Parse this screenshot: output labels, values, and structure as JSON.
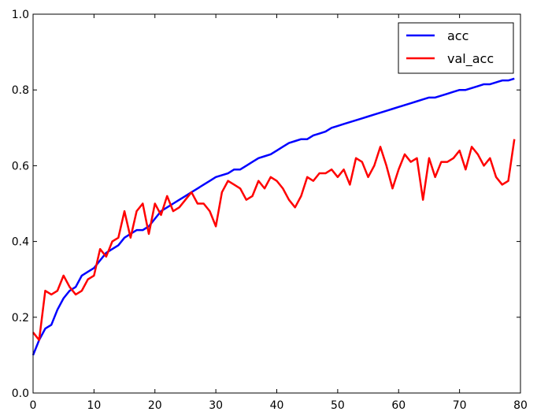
{
  "chart_data": {
    "type": "line",
    "title": "",
    "xlabel": "",
    "ylabel": "",
    "xlim": [
      0,
      80
    ],
    "ylim": [
      0.0,
      1.0
    ],
    "xticks": [
      0,
      10,
      20,
      30,
      40,
      50,
      60,
      70,
      80
    ],
    "yticks": [
      0.0,
      0.2,
      0.4,
      0.6,
      0.8,
      1.0
    ],
    "xtick_labels": [
      "0",
      "10",
      "20",
      "30",
      "40",
      "50",
      "60",
      "70",
      "80"
    ],
    "ytick_labels": [
      "0.0",
      "0.2",
      "0.4",
      "0.6",
      "0.8",
      "1.0"
    ],
    "grid": false,
    "legend_position": "top-right",
    "series": [
      {
        "name": "acc",
        "color": "#0000ff",
        "x": [
          0,
          1,
          2,
          3,
          4,
          5,
          6,
          7,
          8,
          9,
          10,
          11,
          12,
          13,
          14,
          15,
          16,
          17,
          18,
          19,
          20,
          21,
          22,
          23,
          24,
          25,
          26,
          27,
          28,
          29,
          30,
          31,
          32,
          33,
          34,
          35,
          36,
          37,
          38,
          39,
          40,
          41,
          42,
          43,
          44,
          45,
          46,
          47,
          48,
          49,
          50,
          51,
          52,
          53,
          54,
          55,
          56,
          57,
          58,
          59,
          60,
          61,
          62,
          63,
          64,
          65,
          66,
          67,
          68,
          69,
          70,
          71,
          72,
          73,
          74,
          75,
          76,
          77,
          78,
          79
        ],
        "values": [
          0.1,
          0.14,
          0.17,
          0.18,
          0.22,
          0.25,
          0.27,
          0.28,
          0.31,
          0.32,
          0.33,
          0.35,
          0.37,
          0.38,
          0.39,
          0.41,
          0.42,
          0.43,
          0.43,
          0.44,
          0.46,
          0.48,
          0.49,
          0.5,
          0.51,
          0.52,
          0.53,
          0.54,
          0.55,
          0.56,
          0.57,
          0.575,
          0.58,
          0.59,
          0.59,
          0.6,
          0.61,
          0.62,
          0.625,
          0.63,
          0.64,
          0.65,
          0.66,
          0.665,
          0.67,
          0.67,
          0.68,
          0.685,
          0.69,
          0.7,
          0.705,
          0.71,
          0.715,
          0.72,
          0.725,
          0.73,
          0.735,
          0.74,
          0.745,
          0.75,
          0.755,
          0.76,
          0.765,
          0.77,
          0.775,
          0.78,
          0.78,
          0.785,
          0.79,
          0.795,
          0.8,
          0.8,
          0.805,
          0.81,
          0.815,
          0.815,
          0.82,
          0.825,
          0.825,
          0.83
        ]
      },
      {
        "name": "val_acc",
        "color": "#ff0000",
        "x": [
          0,
          1,
          2,
          3,
          4,
          5,
          6,
          7,
          8,
          9,
          10,
          11,
          12,
          13,
          14,
          15,
          16,
          17,
          18,
          19,
          20,
          21,
          22,
          23,
          24,
          25,
          26,
          27,
          28,
          29,
          30,
          31,
          32,
          33,
          34,
          35,
          36,
          37,
          38,
          39,
          40,
          41,
          42,
          43,
          44,
          45,
          46,
          47,
          48,
          49,
          50,
          51,
          52,
          53,
          54,
          55,
          56,
          57,
          58,
          59,
          60,
          61,
          62,
          63,
          64,
          65,
          66,
          67,
          68,
          69,
          70,
          71,
          72,
          73,
          74,
          75,
          76,
          77,
          78,
          79
        ],
        "values": [
          0.16,
          0.14,
          0.27,
          0.26,
          0.27,
          0.31,
          0.28,
          0.26,
          0.27,
          0.3,
          0.31,
          0.38,
          0.36,
          0.4,
          0.41,
          0.48,
          0.41,
          0.48,
          0.5,
          0.42,
          0.5,
          0.47,
          0.52,
          0.48,
          0.49,
          0.51,
          0.53,
          0.5,
          0.5,
          0.48,
          0.44,
          0.53,
          0.56,
          0.55,
          0.54,
          0.51,
          0.52,
          0.56,
          0.54,
          0.57,
          0.56,
          0.54,
          0.51,
          0.49,
          0.52,
          0.57,
          0.56,
          0.58,
          0.58,
          0.59,
          0.57,
          0.59,
          0.55,
          0.62,
          0.61,
          0.57,
          0.6,
          0.65,
          0.6,
          0.54,
          0.59,
          0.63,
          0.61,
          0.62,
          0.51,
          0.62,
          0.57,
          0.61,
          0.61,
          0.62,
          0.64,
          0.59,
          0.65,
          0.63,
          0.6,
          0.62,
          0.57,
          0.55,
          0.56,
          0.67
        ]
      }
    ]
  }
}
